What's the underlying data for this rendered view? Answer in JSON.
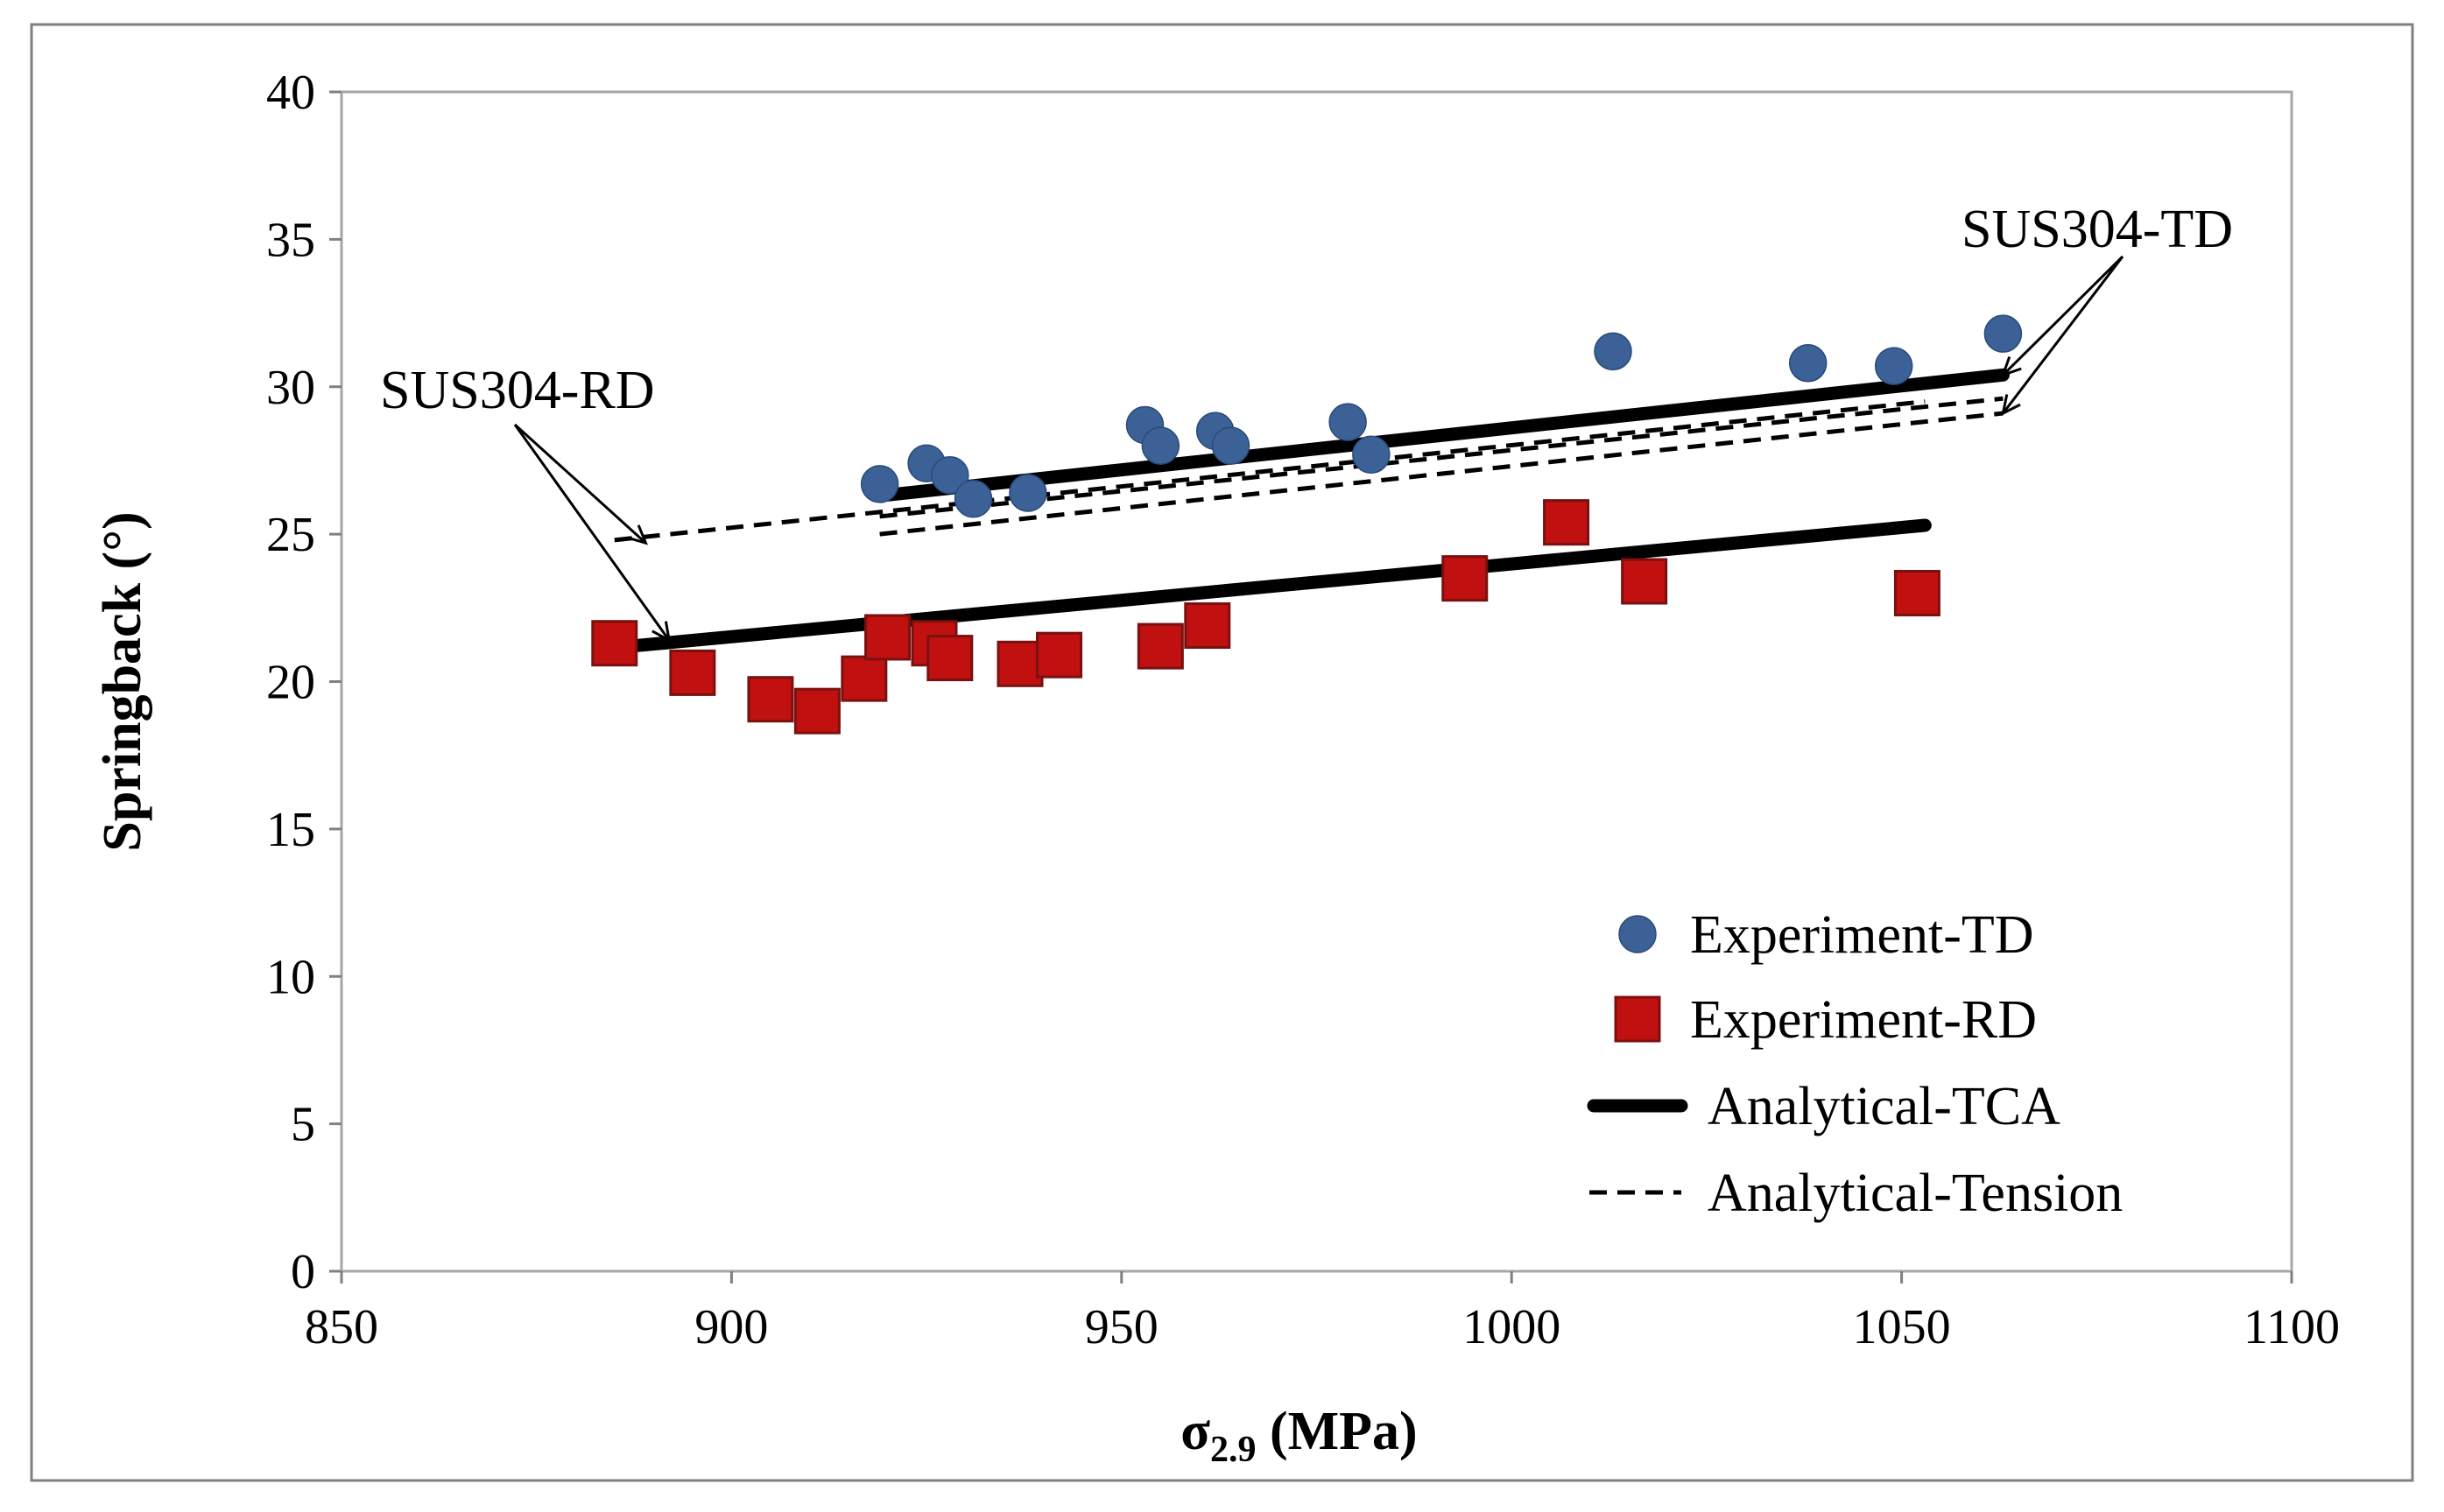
{
  "chart_data": {
    "type": "scatter",
    "title": "",
    "xlabel_main": "σ",
    "xlabel_sub": "2.9",
    "xlabel_unit": "(MPa)",
    "ylabel": "Springback (°)",
    "xlim": [
      850,
      1100
    ],
    "ylim": [
      0,
      40
    ],
    "x_ticks": [
      850,
      900,
      950,
      1000,
      1050,
      1100
    ],
    "y_ticks": [
      0,
      5,
      10,
      15,
      20,
      25,
      30,
      35,
      40
    ],
    "grid": false,
    "legend_position": "bottom-right",
    "colors": {
      "td_marker": "#3b6196",
      "rd_marker": "#c01010",
      "rd_edge": "#7a1010",
      "line": "#000000",
      "frame": "#808080"
    },
    "series": [
      {
        "name": "Experiment-TD",
        "kind": "circle",
        "points": [
          [
            919,
            26.7
          ],
          [
            925,
            27.4
          ],
          [
            928,
            27.0
          ],
          [
            931,
            26.2
          ],
          [
            938,
            26.4
          ],
          [
            953,
            28.7
          ],
          [
            955,
            28.0
          ],
          [
            962,
            28.5
          ],
          [
            964,
            28.0
          ],
          [
            979,
            28.8
          ],
          [
            982,
            27.7
          ],
          [
            1013,
            31.2
          ],
          [
            1038,
            30.8
          ],
          [
            1049,
            30.7
          ],
          [
            1063,
            31.8
          ]
        ]
      },
      {
        "name": "Experiment-RD",
        "kind": "square",
        "points": [
          [
            885,
            21.3
          ],
          [
            895,
            20.3
          ],
          [
            905,
            19.4
          ],
          [
            911,
            19.0
          ],
          [
            917,
            20.1
          ],
          [
            920,
            21.5
          ],
          [
            926,
            21.3
          ],
          [
            928,
            20.8
          ],
          [
            937,
            20.6
          ],
          [
            942,
            20.9
          ],
          [
            955,
            21.2
          ],
          [
            961,
            21.9
          ],
          [
            994,
            23.5
          ],
          [
            1007,
            25.4
          ],
          [
            1017,
            23.4
          ],
          [
            1052,
            23.0
          ]
        ]
      },
      {
        "name": "Analytical-TCA",
        "kind": "solid",
        "lines": [
          [
            [
              919,
              26.3
            ],
            [
              1063,
              30.4
            ]
          ],
          [
            [
              887,
              21.2
            ],
            [
              1053,
              25.3
            ]
          ]
        ]
      },
      {
        "name": "Analytical-Tension",
        "kind": "dashed",
        "lines": [
          [
            [
              885,
              24.8
            ],
            [
              1053,
              29.5
            ]
          ],
          [
            [
              919,
              25.6
            ],
            [
              1063,
              29.6
            ]
          ],
          [
            [
              919,
              25.0
            ],
            [
              1063,
              29.1
            ]
          ]
        ]
      }
    ],
    "annotations": [
      {
        "text": "SUS304-TD",
        "arrow_targets": [
          [
            1063,
            30.4
          ],
          [
            1063,
            29.1
          ]
        ]
      },
      {
        "text": "SUS304-RD",
        "arrow_targets": [
          [
            889,
            24.7
          ],
          [
            892,
            21.4
          ]
        ]
      }
    ]
  }
}
